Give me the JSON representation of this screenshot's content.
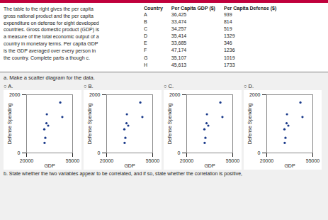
{
  "chart_data": [
    {
      "type": "scatter",
      "title": "○ A.",
      "x": [
        36425,
        33474,
        34257,
        35414,
        33685,
        47174,
        35107,
        45613
      ],
      "values": [
        939,
        814,
        519,
        1329,
        346,
        1236,
        1019,
        1733
      ],
      "color": "#1a3a8a",
      "xlabel": "GDP",
      "ylabel": "Defense Spending",
      "xlim": [
        20000,
        55000
      ],
      "ylim": [
        0,
        2000
      ],
      "xticks": [
        20000,
        55000
      ],
      "yticks": [
        0,
        2000
      ],
      "grid": true
    },
    {
      "type": "scatter",
      "title": "○ B.",
      "x": [
        36425,
        33474,
        34257,
        35414,
        33685,
        47174,
        35107,
        45613
      ],
      "values": [
        939,
        814,
        519,
        1329,
        346,
        1236,
        1019,
        1733
      ],
      "color": "#1a3a8a",
      "xlabel": "GDP",
      "ylabel": "Defense Spending",
      "xlim": [
        20000,
        55000
      ],
      "ylim": [
        0,
        2000
      ],
      "xticks": [
        20000,
        55000
      ],
      "yticks": [
        0,
        2000
      ],
      "grid": true
    },
    {
      "type": "scatter",
      "title": "○ C.",
      "x": [
        36425,
        33474,
        34257,
        35414,
        33685,
        47174,
        35107,
        45613
      ],
      "values": [
        939,
        814,
        519,
        1329,
        346,
        1236,
        1019,
        1733
      ],
      "color": "#1a3a8a",
      "xlabel": "GDP",
      "ylabel": "Defense Spending",
      "xlim": [
        20000,
        55000
      ],
      "ylim": [
        0,
        2000
      ],
      "xticks": [
        20000,
        55000
      ],
      "yticks": [
        0,
        2000
      ],
      "grid": true
    },
    {
      "type": "scatter",
      "title": "○ D.",
      "x": [
        36425,
        33474,
        34257,
        35414,
        33685,
        47174,
        35107,
        45613
      ],
      "values": [
        939,
        814,
        519,
        1329,
        346,
        1236,
        1019,
        1733
      ],
      "color": "#1a3a8a",
      "xlabel": "GDP",
      "ylabel": "Defense Spending",
      "xlim": [
        20000,
        55000
      ],
      "ylim": [
        0,
        2000
      ],
      "xticks": [
        20000,
        55000
      ],
      "yticks": [
        0,
        2000
      ],
      "grid": true
    }
  ],
  "annotations": [
    "The table to the right gives the per capita\ngross national product and the per capita\nexpenditure on defense for eight developed\ncountries. Gross domestic product (GDP) is\na measure of the total economic output of a\ncountry in monetary terms. Per capita GDP\nis the GDP averaged over every person in\nthe country. Complete parts a though c.",
    "a. Make a scatter diagram for the data.",
    "b. State whether the two variables appear to be correlated, and if so, state whether the correlation is positive,"
  ],
  "table": {
    "header": "Country",
    "categories": [
      "A",
      "B",
      "C",
      "D",
      "E",
      "F",
      "G",
      "H"
    ],
    "series": [
      {
        "name": "Per Capita GDP ($)",
        "values": [
          36425,
          33474,
          34257,
          35414,
          33685,
          47174,
          35107,
          45613
        ],
        "value_labels": [
          "36,425",
          "33,474",
          "34,257",
          "35,414",
          "33,685",
          "47,174",
          "35,107",
          "45,613"
        ]
      },
      {
        "name": "Per Capita Defense ($)",
        "values": [
          939,
          814,
          519,
          1329,
          346,
          1236,
          1019,
          1733
        ]
      }
    ]
  }
}
